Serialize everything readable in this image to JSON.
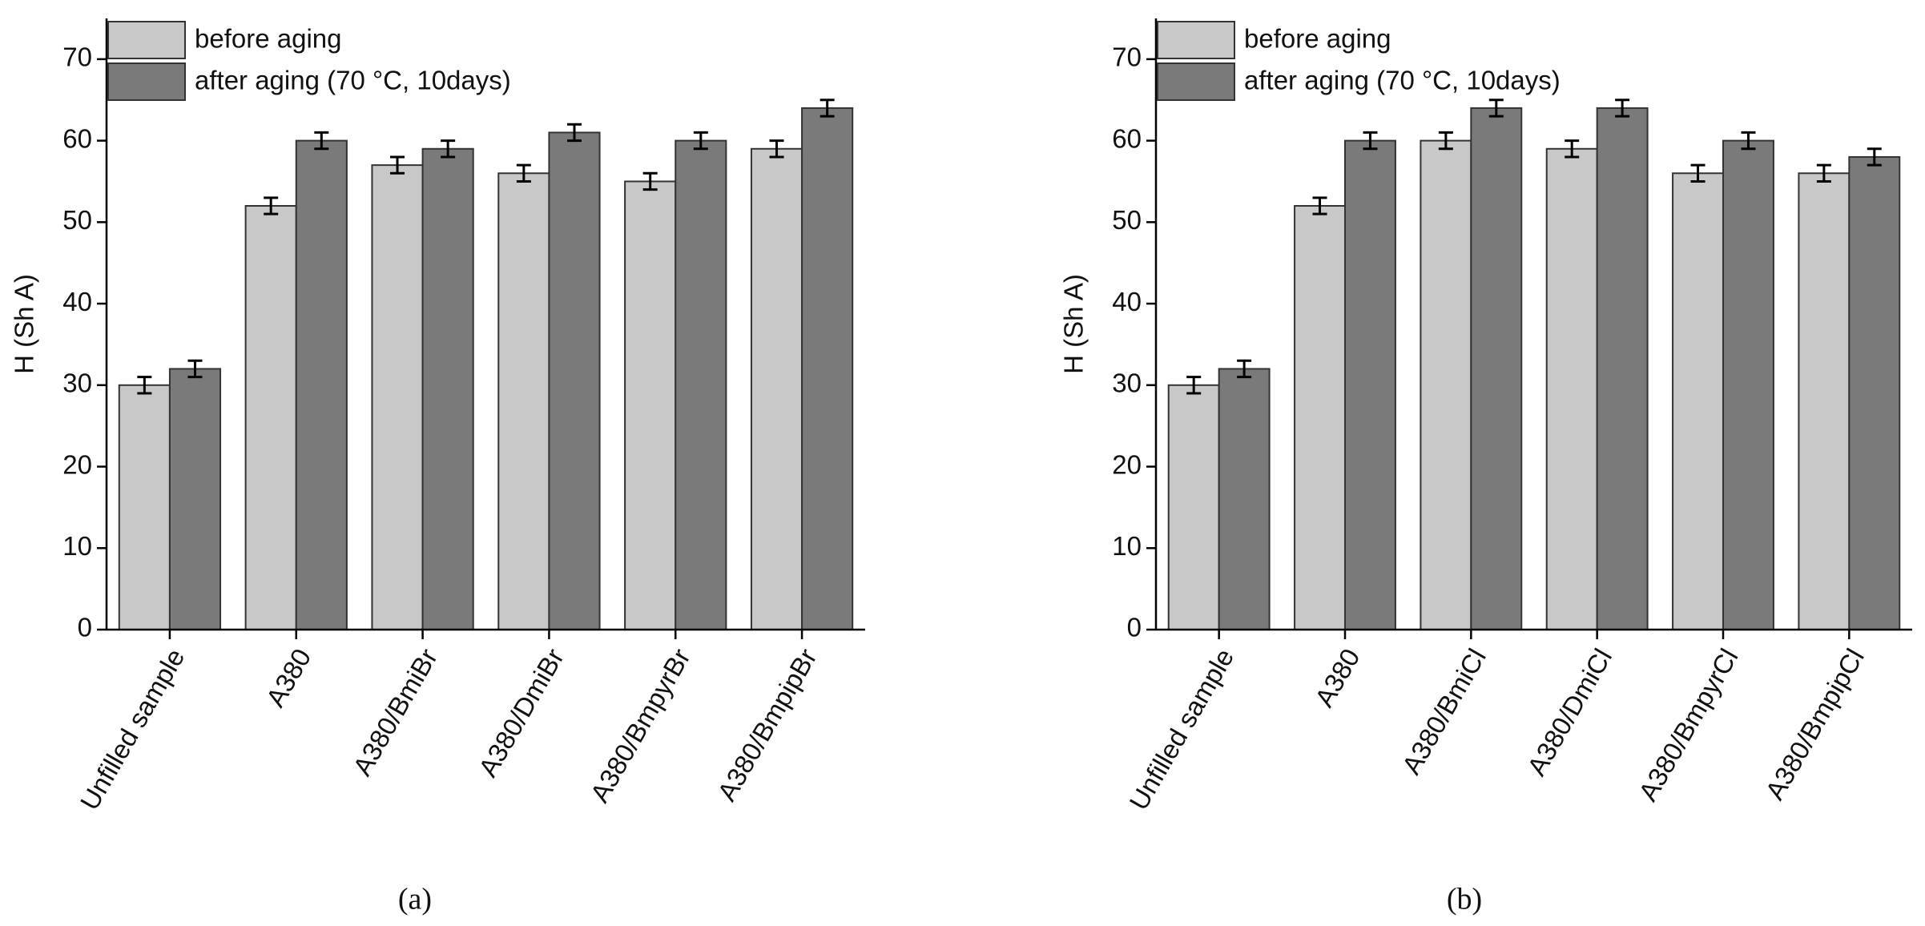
{
  "chart_data": [
    {
      "type": "bar",
      "y_label": "H (Sh A)",
      "caption": "(a)",
      "categories": [
        "Unfilled sample",
        "A380",
        "A380/BmiBr",
        "A380/DmiBr",
        "A380/BmpyrBr",
        "A380/BmpipBr"
      ],
      "series": [
        {
          "name": "before aging",
          "color": "#c8c8c8",
          "values": [
            30,
            52,
            57,
            56,
            55,
            59
          ],
          "errors": [
            1,
            1,
            1,
            1,
            1,
            1
          ]
        },
        {
          "name": "after aging (70 °C, 10days)",
          "color": "#7a7a7a",
          "values": [
            32,
            60,
            59,
            61,
            60,
            64
          ],
          "errors": [
            1,
            1,
            1,
            1,
            1,
            1
          ]
        }
      ],
      "ylim": [
        0,
        75
      ],
      "yticks": [
        0,
        10,
        20,
        30,
        40,
        50,
        60,
        70
      ],
      "legend": "upper-left"
    },
    {
      "type": "bar",
      "y_label": "H (Sh A)",
      "caption": "(b)",
      "categories": [
        "Unfilled sample",
        "A380",
        "A380/BmiCl",
        "A380/DmiCl",
        "A380/BmpyrCl",
        "A380/BmpipCl"
      ],
      "series": [
        {
          "name": "before aging",
          "color": "#c8c8c8",
          "values": [
            30,
            52,
            60,
            59,
            56,
            56
          ],
          "errors": [
            1,
            1,
            1,
            1,
            1,
            1
          ]
        },
        {
          "name": "after aging (70 °C, 10days)",
          "color": "#7a7a7a",
          "values": [
            32,
            60,
            64,
            64,
            60,
            58
          ],
          "errors": [
            1,
            1,
            1,
            1,
            1,
            1
          ]
        }
      ],
      "ylim": [
        0,
        75
      ],
      "yticks": [
        0,
        10,
        20,
        30,
        40,
        50,
        60,
        70
      ],
      "legend": "upper-left"
    }
  ]
}
